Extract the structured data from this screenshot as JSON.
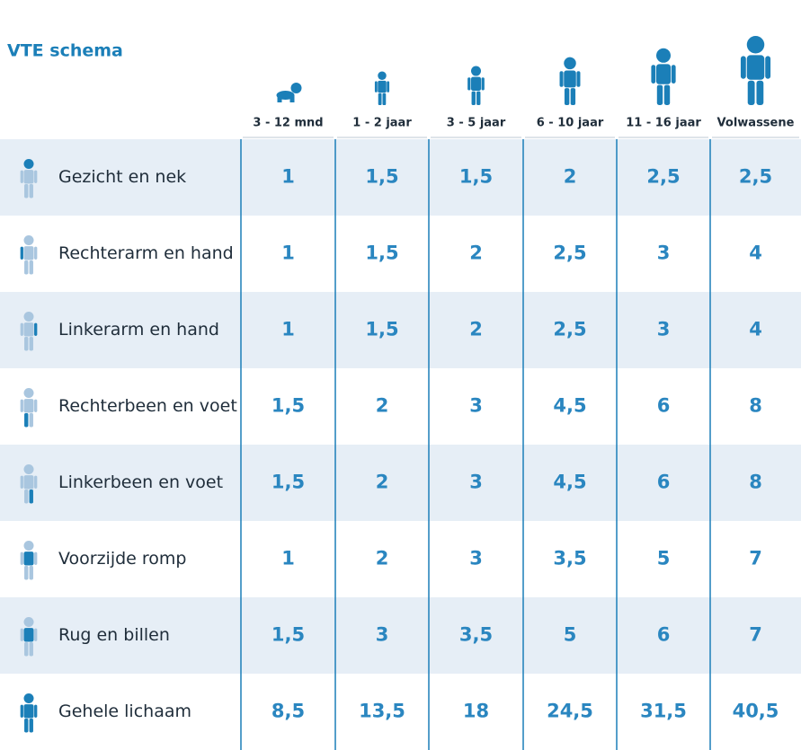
{
  "title": "VTE schema",
  "table": {
    "columns": [
      "3 - 12 mnd",
      "1 - 2 jaar",
      "3 - 5 jaar",
      "6 - 10 jaar",
      "11 - 16 jaar",
      "Volwassene"
    ],
    "rows": [
      [
        "Gezicht en nek",
        "1",
        "1,5",
        "1,5",
        "2",
        "2,5",
        "2,5"
      ],
      [
        "Rechterarm en hand",
        "1",
        "1,5",
        "2",
        "2,5",
        "3",
        "4"
      ],
      [
        "Linkerarm en hand",
        "1",
        "1,5",
        "2",
        "2,5",
        "3",
        "4"
      ],
      [
        "Rechterbeen en voet",
        "1,5",
        "2",
        "3",
        "4,5",
        "6",
        "8"
      ],
      [
        "Linkerbeen en voet",
        "1,5",
        "2",
        "3",
        "4,5",
        "6",
        "8"
      ],
      [
        "Voorzijde romp",
        "1",
        "2",
        "3",
        "3,5",
        "5",
        "7"
      ],
      [
        "Rug en billen",
        "1,5",
        "3",
        "3,5",
        "5",
        "6",
        "7"
      ],
      [
        "Gehele lichaam",
        "8,5",
        "13,5",
        "18",
        "24,5",
        "31,5",
        "40,5"
      ]
    ]
  }
}
